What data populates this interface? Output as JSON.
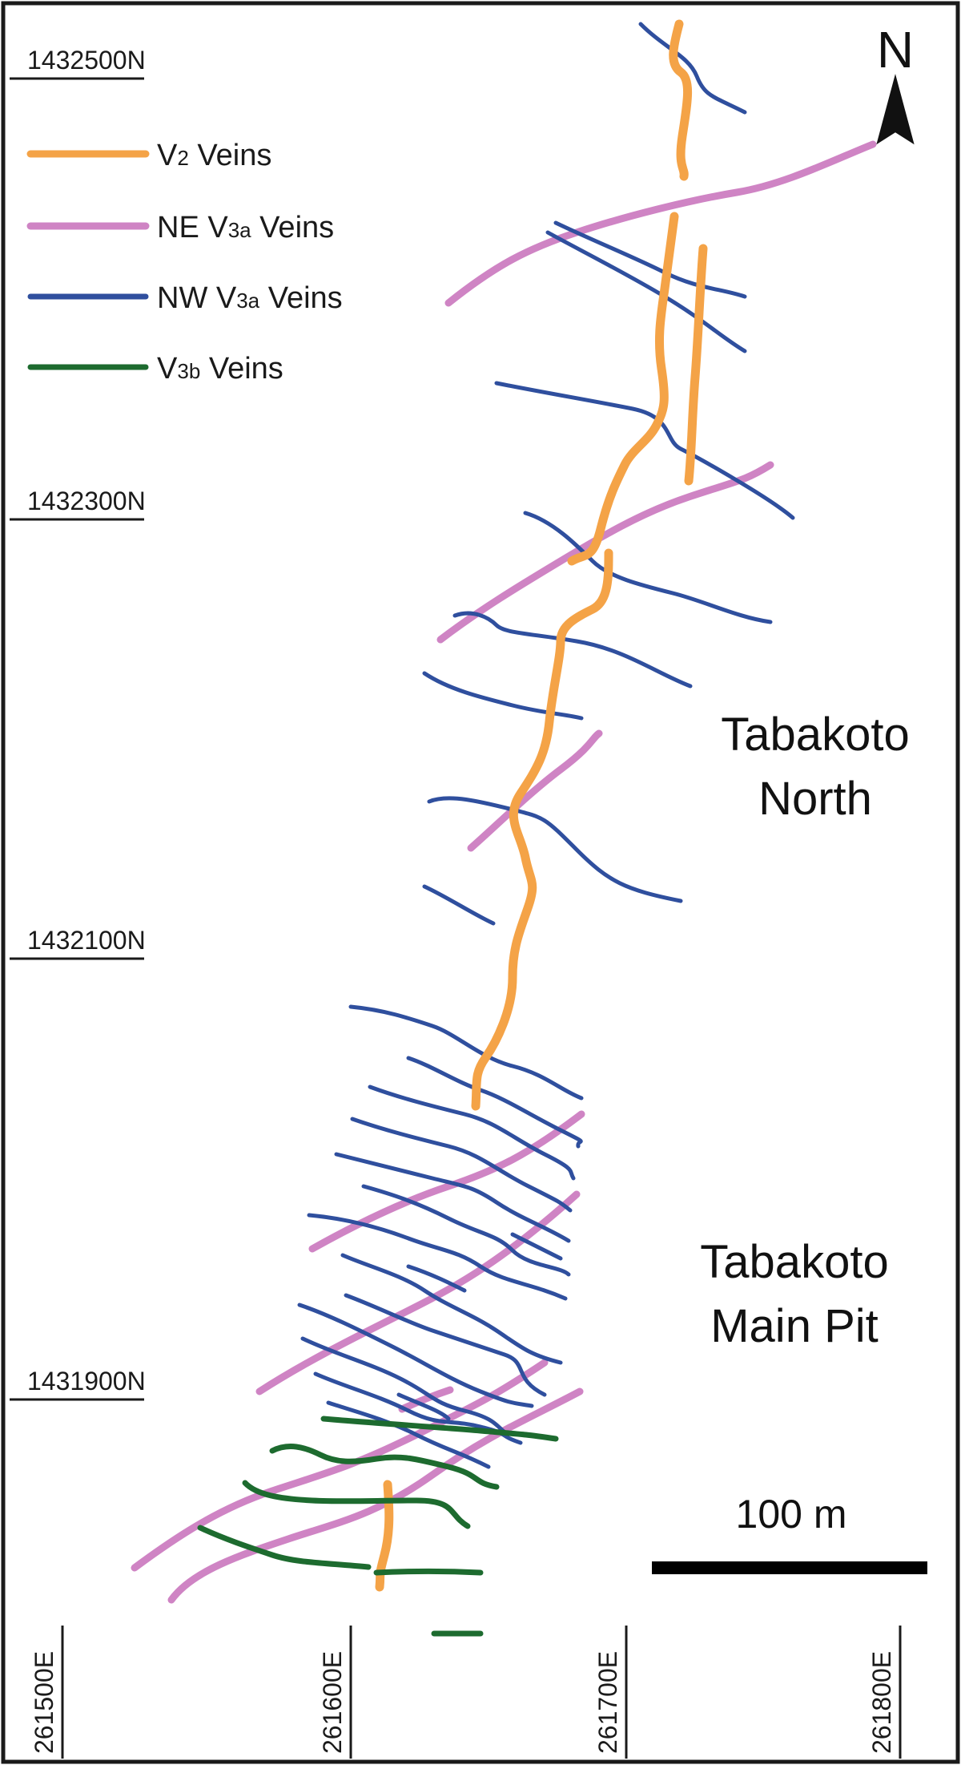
{
  "map": {
    "northings": [
      "1432500N",
      "1432300N",
      "1432100N",
      "1431900N"
    ],
    "eastings": [
      "261500E",
      "261600E",
      "261700E",
      "261800E"
    ],
    "north_label": "N",
    "scale_label": "100 m",
    "regions": {
      "north": [
        "Tabakoto",
        "North"
      ],
      "main_pit": [
        "Tabakoto",
        "Main Pit"
      ]
    }
  },
  "legend": {
    "items": [
      {
        "label_prefix": "V",
        "label_sub": "2",
        "label_suffix": " Veins",
        "color": "#f4a347"
      },
      {
        "label_prefix": "NE V",
        "label_sub": "3a",
        "label_suffix": " Veins",
        "color": "#cf84c4"
      },
      {
        "label_prefix": "NW V",
        "label_sub": "3a",
        "label_suffix": " Veins",
        "color": "#2f4f9e"
      },
      {
        "label_prefix": "V",
        "label_sub": "3b",
        "label_suffix": " Veins",
        "color": "#1d6b2f"
      }
    ]
  },
  "colors": {
    "v2": "#f4a347",
    "ne_v3a": "#cf84c4",
    "nw_v3a": "#2f4f9e",
    "v3b": "#1d6b2f",
    "frame": "#1a1a1a"
  }
}
